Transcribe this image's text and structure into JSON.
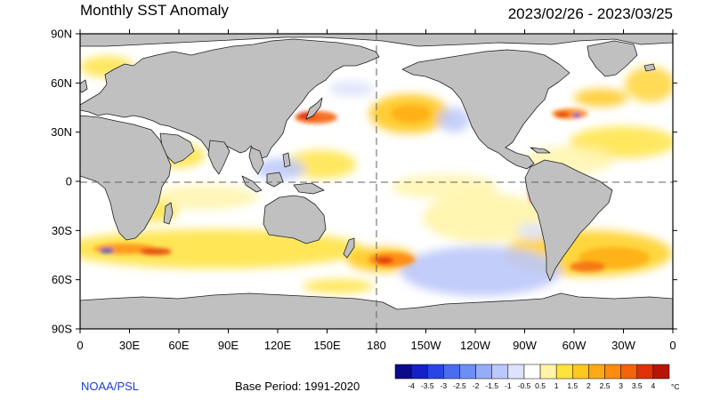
{
  "title": "Monthly SST Anomaly",
  "date_range": "2023/02/26 - 2023/03/25",
  "credit": "NOAA/PSL",
  "base_period": "Base Period: 1991-2020",
  "lat_labels": [
    "90N",
    "60N",
    "30N",
    "0",
    "30S",
    "60S",
    "90S"
  ],
  "lon_labels": [
    "0",
    "30E",
    "60E",
    "90E",
    "120E",
    "150E",
    "180",
    "150W",
    "120W",
    "90W",
    "60W",
    "30W",
    "0"
  ],
  "colorbar": {
    "unit": "°C",
    "tick_labels": [
      "-4",
      "-3.5",
      "-3",
      "-2.5",
      "-2",
      "-1.5",
      "-1",
      "-0.5",
      "0.5",
      "1",
      "1.5",
      "2",
      "2.5",
      "3",
      "3.5",
      "4"
    ],
    "colors": [
      "#0a0a8c",
      "#1420c8",
      "#2a45e6",
      "#4a6cf0",
      "#6e8ef4",
      "#97acf6",
      "#bcc8fa",
      "#dde3fc",
      "#ffffff",
      "#fff4a8",
      "#ffe23a",
      "#ffc81e",
      "#ffaa14",
      "#ff8a0e",
      "#f4620a",
      "#e03008",
      "#b81404"
    ]
  },
  "colors": {
    "land": "#c0c0c0",
    "coast": "#202020",
    "neutral_ocean": "#ffffff",
    "warm": "#ffe23a",
    "cold": "#97acf6"
  }
}
